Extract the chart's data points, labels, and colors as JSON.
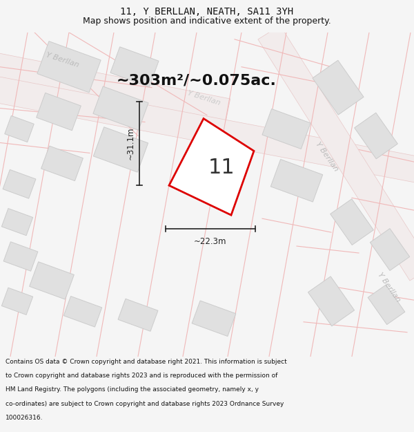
{
  "title": "11, Y BERLLAN, NEATH, SA11 3YH",
  "subtitle": "Map shows position and indicative extent of the property.",
  "area_text": "~303m²/~0.075ac.",
  "dim_width": "~22.3m",
  "dim_height": "~31.1m",
  "property_number": "11",
  "footer_text": "Contains OS data © Crown copyright and database right 2021. This information is subject to Crown copyright and database rights 2023 and is reproduced with the permission of HM Land Registry. The polygons (including the associated geometry, namely x, y co-ordinates) are subject to Crown copyright and database rights 2023 Ordnance Survey 100026316.",
  "bg_color": "#f5f5f5",
  "map_bg": "#f8f8f8",
  "plot_fill": "#ffffff",
  "plot_edge": "#dd0000",
  "road_fill": "#f5e8e8",
  "road_line": "#e8c0c0",
  "building_fill": "#e0e0e0",
  "building_edge": "#cccccc",
  "street_label_color": "#bbbbbb",
  "dim_color": "#222222",
  "title_fontsize": 10,
  "subtitle_fontsize": 9,
  "area_fontsize": 17,
  "number_fontsize": 20,
  "footer_fontsize": 6.5
}
